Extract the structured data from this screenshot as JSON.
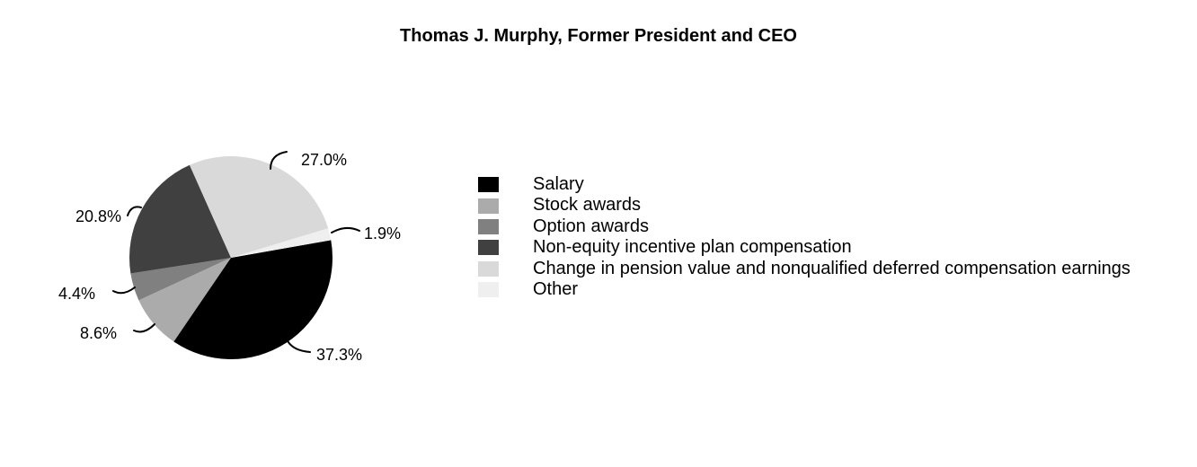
{
  "page": {
    "background": "#FFFFFF"
  },
  "chart_data": {
    "type": "pie",
    "title": "Thomas J. Murphy, Former President and CEO",
    "unit": "percent",
    "start_angle_deg": 10,
    "direction": "clockwise",
    "legend_position": "right",
    "slices": [
      {
        "label": "Salary",
        "value": 37.3,
        "display": "37.3%",
        "color": "#000000"
      },
      {
        "label": "Stock awards",
        "value": 8.6,
        "display": "8.6%",
        "color": "#ABABAB"
      },
      {
        "label": "Option awards",
        "value": 4.4,
        "display": "4.4%",
        "color": "#808080"
      },
      {
        "label": "Non-equity incentive plan compensation",
        "value": 20.8,
        "display": "20.8%",
        "color": "#404040"
      },
      {
        "label": "Change in pension value and nonqualified deferred compensation earnings",
        "value": 27.0,
        "display": "27.0%",
        "color": "#D9D9D9"
      },
      {
        "label": "Other",
        "value": 1.9,
        "display": "1.9%",
        "color": "#EFEFEF"
      }
    ]
  }
}
